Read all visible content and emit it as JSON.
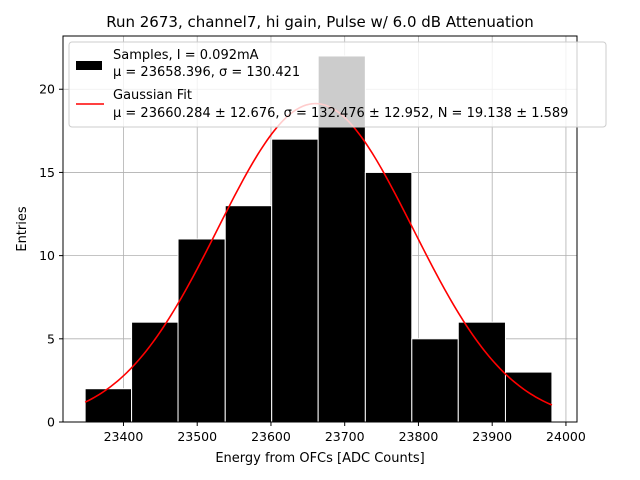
{
  "chart_data": {
    "type": "bar",
    "title": "Run 2673, channel7, hi gain, Pulse w/ 6.0 dB Attenuation",
    "xlabel": "Energy from OFCs [ADC Counts]",
    "ylabel": "Entries",
    "xlim": [
      23318,
      24015
    ],
    "ylim": [
      0,
      23.2
    ],
    "xticks": [
      23400,
      23500,
      23600,
      23700,
      23800,
      23900,
      24000
    ],
    "yticks": [
      0,
      5,
      10,
      15,
      20
    ],
    "grid": true,
    "legend_position": "top-right",
    "histogram": {
      "name": "Samples, I = 0.092mA",
      "stats": "μ = 23658.396, σ = 130.421",
      "color": "#000000",
      "bins": [
        {
          "x0": 23348,
          "x1": 23411,
          "count": 2
        },
        {
          "x0": 23411,
          "x1": 23474,
          "count": 6
        },
        {
          "x0": 23474,
          "x1": 23538,
          "count": 11
        },
        {
          "x0": 23538,
          "x1": 23601,
          "count": 13
        },
        {
          "x0": 23601,
          "x1": 23664,
          "count": 17
        },
        {
          "x0": 23664,
          "x1": 23728,
          "count": 22
        },
        {
          "x0": 23728,
          "x1": 23791,
          "count": 15
        },
        {
          "x0": 23791,
          "x1": 23854,
          "count": 5
        },
        {
          "x0": 23854,
          "x1": 23918,
          "count": 6
        },
        {
          "x0": 23918,
          "x1": 23981,
          "count": 3
        }
      ]
    },
    "fit": {
      "name": "Gaussian Fit",
      "stats": "μ = 23660.284 ± 12.676, σ = 132.476 ± 12.952, N = 19.138 ± 1.589",
      "color": "#ff0000",
      "mu": 23660.284,
      "sigma": 132.476,
      "N": 19.138,
      "x_range": [
        23348,
        23981
      ]
    }
  }
}
